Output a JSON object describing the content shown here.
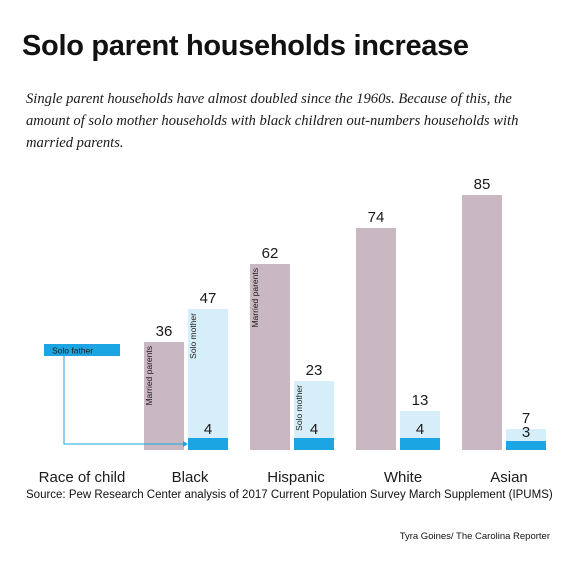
{
  "header": {
    "title": "Solo parent households increase",
    "subtitle": "Single parent households have almost doubled since the 1960s. Because of this, the amount of solo mother households with black children out-numbers households with married parents."
  },
  "footer": {
    "source": "Source: Pew Research Center analysis of 2017 Current Population Survey March Supplement (IPUMS)",
    "credit": "Tyra Goines/ The Carolina Reporter"
  },
  "colors": {
    "married_parents": "#c9b8c2",
    "solo_mother": "#d6eefa",
    "solo_father": "#1ba6e3",
    "text": "#1a1a1a"
  },
  "chart_data": {
    "type": "bar",
    "xlabel": "Race of child",
    "ylabel": "",
    "ylim": [
      0,
      100
    ],
    "grid": false,
    "categories": [
      "Black",
      "Hispanic",
      "White",
      "Asian"
    ],
    "series": [
      {
        "name": "Married parents",
        "values": [
          36,
          62,
          74,
          85
        ]
      },
      {
        "name": "Solo mother",
        "values": [
          47,
          23,
          13,
          7
        ]
      },
      {
        "name": "Solo father",
        "values": [
          4,
          4,
          4,
          3
        ]
      }
    ],
    "legend": {
      "label": "Solo father",
      "placement": "left"
    },
    "inbar_labels": [
      {
        "text": "Married parents",
        "category": "Black",
        "series": "Married parents"
      },
      {
        "text": "Solo mother",
        "category": "Black",
        "series": "Solo mother"
      },
      {
        "text": "Married parents",
        "category": "Hispanic",
        "series": "Married parents"
      },
      {
        "text": "Solo mother",
        "category": "Hispanic",
        "series": "Solo mother"
      }
    ]
  }
}
